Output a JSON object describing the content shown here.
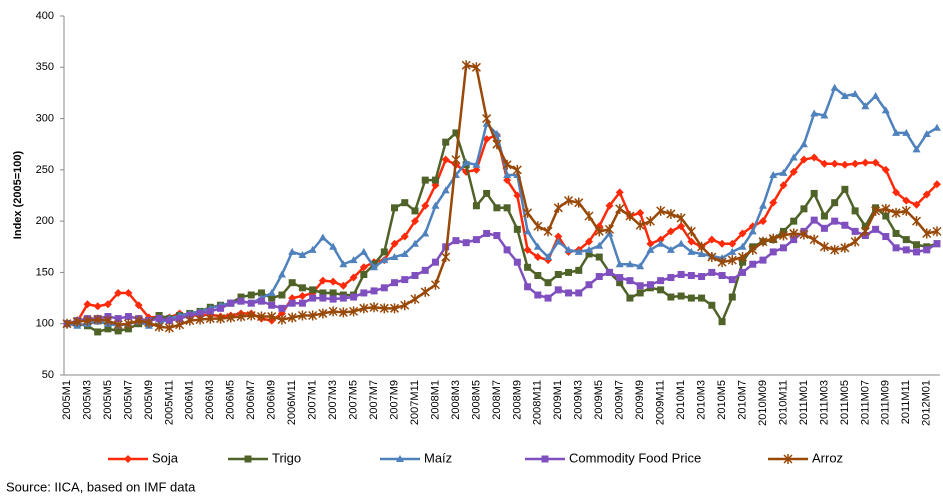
{
  "chart_data": {
    "type": "line",
    "y_label": "Index  (2005=100)",
    "source": "Source: IICA, based on IMF data",
    "ylim": [
      50,
      400
    ],
    "yticks": [
      50,
      100,
      150,
      200,
      250,
      300,
      350,
      400
    ],
    "categories": [
      "2005M1",
      null,
      "2005M3",
      null,
      "2005M5",
      null,
      "2005M7",
      null,
      "2005M9",
      null,
      "2005M11",
      null,
      "2006M1",
      null,
      "2006M3",
      null,
      "2006M5",
      null,
      "2006M7",
      null,
      "2006M9",
      null,
      "2006M11",
      null,
      "2007M1",
      null,
      "2007M3",
      null,
      "2007M5",
      null,
      "2007M7",
      null,
      "2007M9",
      null,
      "2007M11",
      null,
      "2008M1",
      null,
      "2008M3",
      null,
      "2008M5",
      null,
      "2008M7",
      null,
      "2008M9",
      null,
      "2008M11",
      null,
      "2009M1",
      null,
      "2009M3",
      null,
      "2009M5",
      null,
      "2009M7",
      null,
      "2009M9",
      null,
      "2009M11",
      null,
      "2010M1",
      null,
      "2010M3",
      null,
      "2010M5",
      null,
      "2010M7",
      null,
      "2010M09",
      null,
      "2010M11",
      null,
      "2011M01",
      null,
      "2011M03",
      null,
      "2011M05",
      null,
      "2011M07",
      null,
      "2011M09",
      null,
      "2011M11",
      null,
      "2012M01",
      null
    ],
    "series": [
      {
        "name": "Soja",
        "color": "#ff2a0a",
        "marker": "diamond",
        "values": [
          100,
          102,
          119,
          117,
          119,
          130,
          130,
          118,
          106,
          107,
          106,
          110,
          108,
          108,
          109,
          107,
          108,
          110,
          110,
          105,
          103,
          110,
          125,
          127,
          130,
          142,
          141,
          137,
          145,
          155,
          160,
          162,
          178,
          185,
          200,
          215,
          235,
          260,
          255,
          248,
          250,
          280,
          284,
          240,
          225,
          172,
          165,
          162,
          185,
          170,
          172,
          180,
          195,
          215,
          228,
          205,
          208,
          178,
          182,
          190,
          195,
          180,
          175,
          182,
          178,
          178,
          188,
          195,
          200,
          218,
          235,
          248,
          260,
          262,
          256,
          256,
          255,
          256,
          257,
          257,
          250,
          228,
          220,
          216,
          226,
          236
        ]
      },
      {
        "name": "Trigo",
        "color": "#4f6228",
        "marker": "square",
        "values": [
          100,
          100,
          98,
          92,
          95,
          93,
          95,
          100,
          103,
          108,
          105,
          108,
          110,
          112,
          116,
          118,
          120,
          126,
          128,
          130,
          125,
          128,
          140,
          135,
          133,
          130,
          130,
          128,
          128,
          148,
          158,
          170,
          213,
          218,
          210,
          240,
          240,
          277,
          286,
          255,
          215,
          227,
          213,
          213,
          192,
          155,
          147,
          140,
          148,
          150,
          152,
          168,
          165,
          150,
          140,
          125,
          130,
          135,
          133,
          126,
          127,
          125,
          125,
          118,
          102,
          126,
          160,
          175,
          180,
          182,
          190,
          200,
          212,
          227,
          205,
          218,
          231,
          210,
          195,
          213,
          205,
          188,
          182,
          177,
          175,
          178
        ]
      },
      {
        "name": "Maíz",
        "color": "#4f81bd",
        "marker": "triangle",
        "values": [
          100,
          98,
          100,
          102,
          100,
          98,
          100,
          102,
          98,
          100,
          105,
          108,
          110,
          112,
          115,
          118,
          120,
          122,
          120,
          125,
          130,
          148,
          170,
          167,
          172,
          184,
          175,
          158,
          162,
          170,
          155,
          162,
          165,
          168,
          178,
          188,
          215,
          230,
          245,
          257,
          255,
          295,
          285,
          245,
          245,
          190,
          175,
          165,
          180,
          172,
          170,
          172,
          176,
          188,
          158,
          158,
          156,
          172,
          178,
          172,
          178,
          170,
          168,
          166,
          164,
          170,
          175,
          190,
          215,
          245,
          247,
          262,
          275,
          305,
          303,
          330,
          322,
          324,
          312,
          322,
          308,
          286,
          286,
          270,
          285,
          291
        ]
      },
      {
        "name": "Commodity Food Price",
        "color": "#7f4fbf",
        "marker": "square",
        "values": [
          100,
          103,
          105,
          105,
          107,
          105,
          107,
          105,
          103,
          105,
          103,
          105,
          108,
          110,
          112,
          115,
          120,
          122,
          120,
          122,
          118,
          115,
          120,
          120,
          125,
          125,
          124,
          125,
          126,
          130,
          132,
          135,
          140,
          143,
          147,
          152,
          160,
          175,
          181,
          179,
          182,
          188,
          186,
          172,
          160,
          136,
          128,
          125,
          133,
          130,
          130,
          138,
          146,
          150,
          145,
          142,
          137,
          138,
          142,
          145,
          148,
          147,
          146,
          150,
          147,
          143,
          150,
          158,
          162,
          170,
          174,
          182,
          190,
          201,
          193,
          200,
          196,
          190,
          186,
          192,
          185,
          174,
          172,
          170,
          172,
          178
        ]
      },
      {
        "name": "Arroz",
        "color": "#984807",
        "marker": "star",
        "values": [
          100,
          102,
          103,
          104,
          103,
          99,
          100,
          103,
          101,
          97,
          96,
          99,
          103,
          104,
          105,
          105,
          106,
          107,
          108,
          107,
          107,
          104,
          106,
          108,
          108,
          110,
          112,
          111,
          112,
          115,
          116,
          115,
          115,
          118,
          124,
          131,
          138,
          165,
          260,
          352,
          350,
          300,
          275,
          255,
          250,
          208,
          195,
          190,
          213,
          220,
          218,
          205,
          190,
          192,
          212,
          205,
          196,
          200,
          210,
          207,
          203,
          190,
          175,
          165,
          160,
          162,
          165,
          172,
          180,
          183,
          186,
          188,
          187,
          182,
          175,
          172,
          174,
          180,
          190,
          210,
          212,
          208,
          210,
          200,
          188,
          190
        ]
      }
    ]
  }
}
